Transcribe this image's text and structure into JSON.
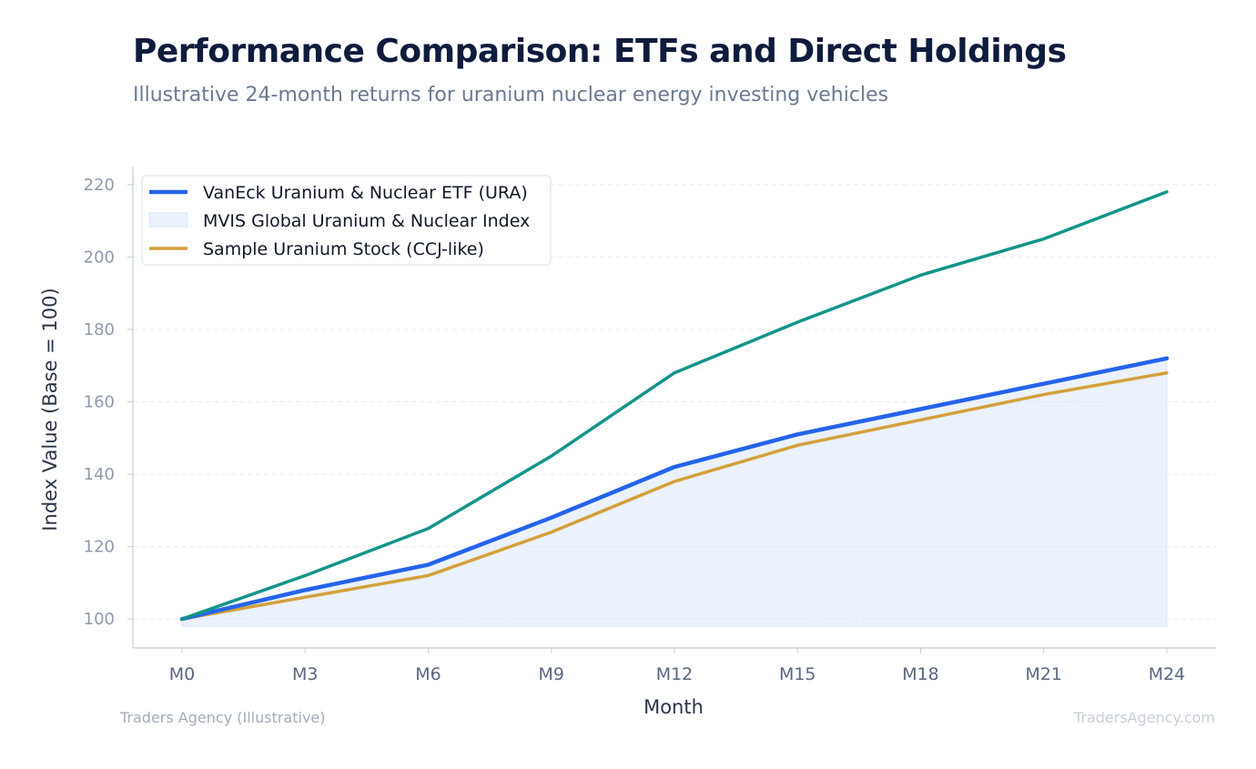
{
  "header": {
    "title": "Performance Comparison: ETFs and Direct Holdings",
    "subtitle": "Illustrative 24-month returns for uranium nuclear energy investing vehicles"
  },
  "footer": {
    "left": "Traders Agency (Illustrative)",
    "right": "TradersAgency.com"
  },
  "chart_data": {
    "type": "line",
    "xlabel": "Month",
    "ylabel": "Index Value (Base = 100)",
    "categories": [
      "M0",
      "M3",
      "M6",
      "M9",
      "M12",
      "M15",
      "M18",
      "M21",
      "M24"
    ],
    "yticks": [
      100,
      120,
      140,
      160,
      180,
      200,
      220
    ],
    "ylim": [
      92,
      225
    ],
    "grid": true,
    "legend_position": "top-left",
    "series": [
      {
        "name": "VanEck Uranium & Nuclear ETF (URA)",
        "kind": "line",
        "color": "#2563eb",
        "values": [
          100,
          108,
          115,
          128,
          142,
          151,
          158,
          165,
          172
        ]
      },
      {
        "name": "MVIS Global Uranium & Nuclear Index",
        "kind": "area",
        "color": "#dbe5fb",
        "values": [
          100,
          108,
          115,
          128,
          142,
          151,
          158,
          165,
          172
        ]
      },
      {
        "name": "Sample Uranium Stock (CCJ-like)",
        "kind": "line",
        "color": "#d4a03a",
        "values": [
          100,
          106,
          112,
          124,
          138,
          148,
          155,
          162,
          168
        ]
      },
      {
        "name": "",
        "kind": "line",
        "color": "#14948a",
        "values": [
          100,
          112,
          125,
          145,
          168,
          182,
          195,
          205,
          218
        ]
      }
    ]
  }
}
